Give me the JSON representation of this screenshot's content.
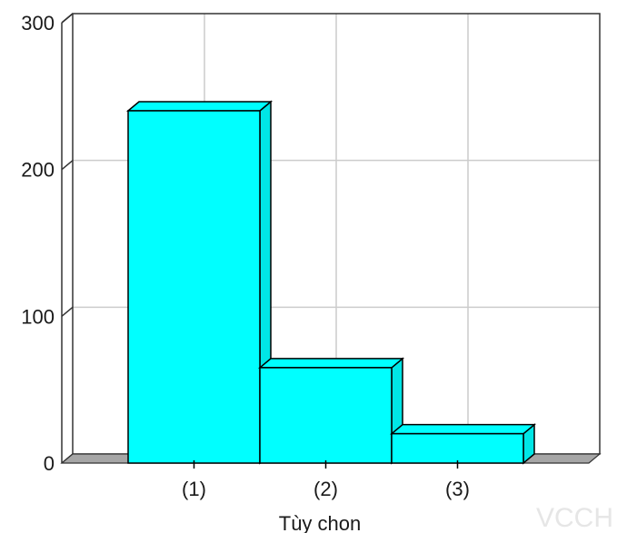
{
  "chart_data": {
    "type": "bar",
    "categories": [
      "(1)",
      "(2)",
      "(3)"
    ],
    "values": [
      240,
      65,
      20
    ],
    "xlabel": "Tùy chon",
    "ylabel": "",
    "ylim": [
      0,
      300
    ],
    "yticks": [
      "0",
      "100",
      "200",
      "300"
    ],
    "grid": true,
    "style": "3d",
    "colors": {
      "bar": "#00ffff",
      "floor": "#a6a6a6",
      "grid": "#cccccc",
      "frame": "#333333"
    }
  },
  "watermark": "VCCH"
}
